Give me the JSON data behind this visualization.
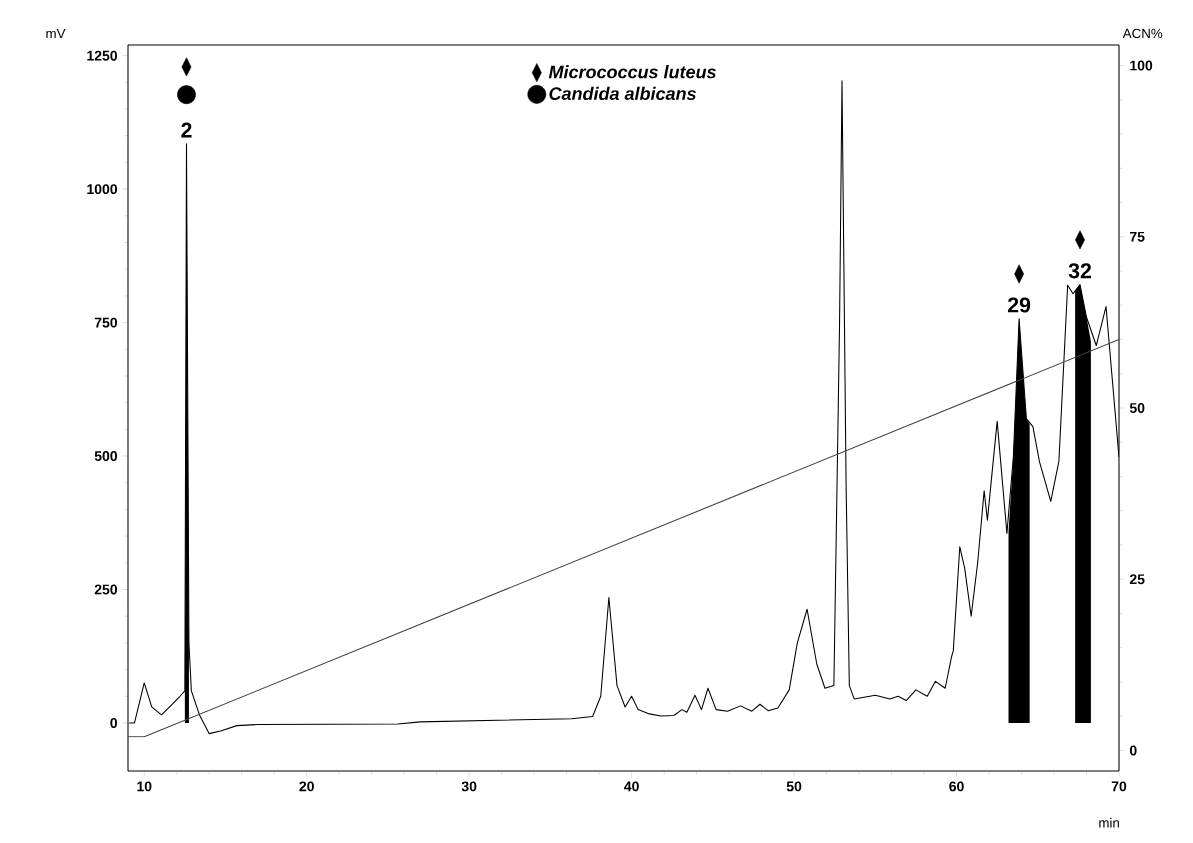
{
  "chart_data": {
    "type": "line",
    "xlabel": "min",
    "ylabel": "mV",
    "y2label": "ACN%",
    "xlim": [
      9,
      70
    ],
    "xticks": [
      10,
      20,
      30,
      40,
      50,
      60,
      70
    ],
    "ylim": [
      -90,
      1270
    ],
    "yticks": [
      0,
      250,
      500,
      750,
      1000,
      1250
    ],
    "y2lim": [
      -3,
      103
    ],
    "y2ticks": [
      0,
      25,
      50,
      75,
      100
    ],
    "legend": "top",
    "series": [
      {
        "color": "#000000",
        "x": [
          9.07,
          9.4,
          10.0,
          10.46,
          11.06,
          11.56,
          12.2,
          12.5,
          12.6,
          12.75,
          12.9,
          13.4,
          14.0,
          14.7,
          15.7,
          17.0,
          25.6,
          27.0,
          36.3,
          37.6,
          38.1,
          38.6,
          39.1,
          39.6,
          40.0,
          40.4,
          41.1,
          41.8,
          42.6,
          43.1,
          43.4,
          43.9,
          44.3,
          44.7,
          45.2,
          45.9,
          46.7,
          47.4,
          47.9,
          48.4,
          49.0,
          49.7,
          50.2,
          50.8,
          51.4,
          51.9,
          52.45,
          52.8,
          52.95,
          53.2,
          53.4,
          53.7,
          55.0,
          55.9,
          56.4,
          56.9,
          57.5,
          58.2,
          58.7,
          59.3,
          59.7,
          59.8,
          60.2,
          60.5,
          60.9,
          61.3,
          61.7,
          61.9,
          62.5,
          63.1,
          63.5,
          63.85,
          64.3,
          64.7,
          65.1,
          65.8,
          66.3,
          66.84,
          67.17,
          67.6,
          68.0,
          68.6,
          69.2,
          70.0
        ],
        "values": [
          0,
          0,
          75,
          30,
          15,
          30,
          50,
          60,
          1085,
          150,
          60,
          15,
          -20,
          -15,
          -5,
          -3,
          -2,
          2,
          8,
          12,
          50,
          235,
          70,
          30,
          50,
          25,
          17,
          13,
          14,
          25,
          20,
          52,
          25,
          65,
          25,
          22,
          32,
          22,
          35,
          23,
          28,
          62,
          150,
          213,
          110,
          65,
          70,
          750,
          1203,
          450,
          70,
          45,
          52,
          45,
          50,
          42,
          62,
          50,
          78,
          65,
          125,
          135,
          330,
          290,
          200,
          300,
          435,
          380,
          565,
          355,
          500,
          757,
          570,
          555,
          490,
          415,
          490,
          820,
          804,
          821,
          760,
          707,
          780,
          498
        ]
      },
      {
        "type": "area",
        "color": "#000000",
        "x": [
          12.5,
          12.6,
          12.75
        ],
        "values": [
          60,
          1085,
          150
        ]
      },
      {
        "type": "area",
        "color": "#000000",
        "x": [
          63.2,
          63.5,
          63.85,
          64.3,
          64.5
        ],
        "values": [
          360,
          500,
          757,
          570,
          560
        ]
      },
      {
        "type": "area",
        "color": "#000000",
        "x": [
          67.3,
          67.6,
          68.0,
          68.27
        ],
        "values": [
          810,
          821,
          760,
          715
        ]
      },
      {
        "type": "line",
        "axis": "y2",
        "color": "#404040",
        "x": [
          9,
          10,
          70
        ],
        "values": [
          2,
          2,
          60
        ]
      },
      {
        "type": "scatter",
        "name": "Micrococcus luteus",
        "marker": "diamond",
        "color": "#000000",
        "x": [
          12.6,
          63.85,
          67.6
        ],
        "values": [
          1229,
          841,
          905
        ]
      },
      {
        "type": "scatter",
        "name": "Candida albicans",
        "marker": "circle",
        "color": "#000000",
        "x": [
          12.6
        ],
        "values": [
          1177
        ]
      }
    ],
    "annotations": [
      {
        "text": "2",
        "x": 12.6,
        "y": 1085
      },
      {
        "text": "29",
        "x": 63.85,
        "y": 757
      },
      {
        "text": "32",
        "x": 67.6,
        "y": 821
      }
    ]
  }
}
